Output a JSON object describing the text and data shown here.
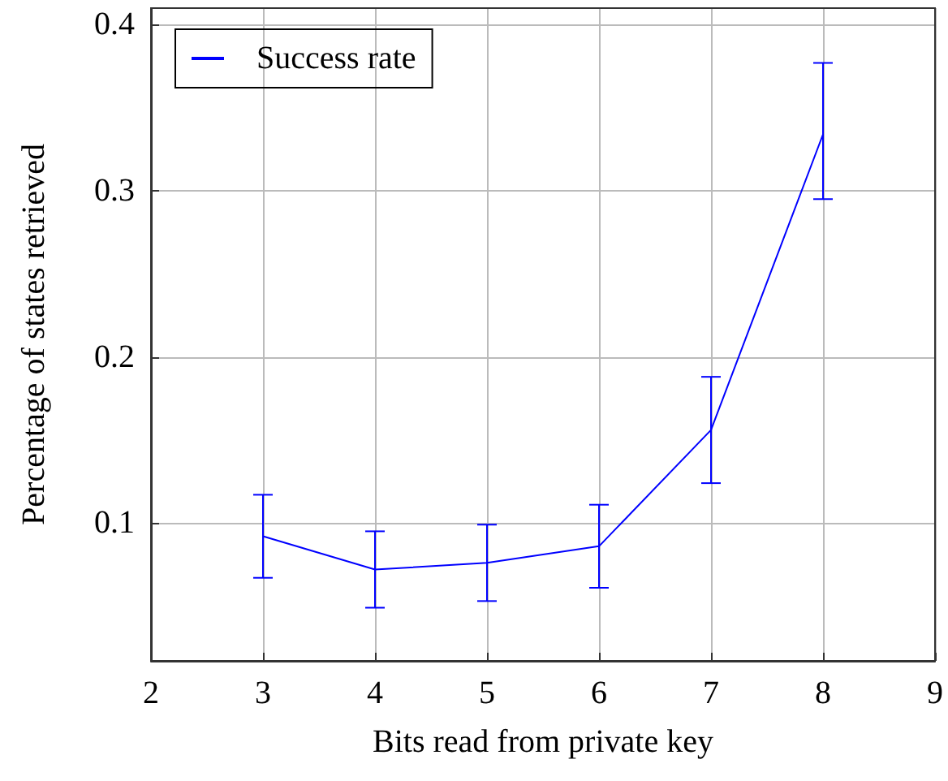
{
  "chart_data": {
    "type": "line",
    "xlabel": "Bits read from private key",
    "ylabel": "Percentage of states retrieved",
    "x": [
      3,
      4,
      5,
      6,
      7,
      8
    ],
    "series": [
      {
        "name": "Success rate",
        "color": "#0000ff",
        "values": [
          0.092,
          0.072,
          0.076,
          0.086,
          0.156,
          0.334
        ],
        "errors": [
          0.025,
          0.023,
          0.023,
          0.025,
          0.032,
          [
            0.295,
            0.377
          ]
        ]
      }
    ],
    "xlim": [
      2,
      9
    ],
    "xticks": [
      2,
      3,
      4,
      5,
      6,
      7,
      8,
      9
    ],
    "ylim": [
      0.017,
      0.41
    ],
    "yticks": [
      0.1,
      0.2,
      0.3,
      0.4
    ],
    "grid": true,
    "legend": "top left",
    "marker": "none",
    "line_style": "solid"
  }
}
